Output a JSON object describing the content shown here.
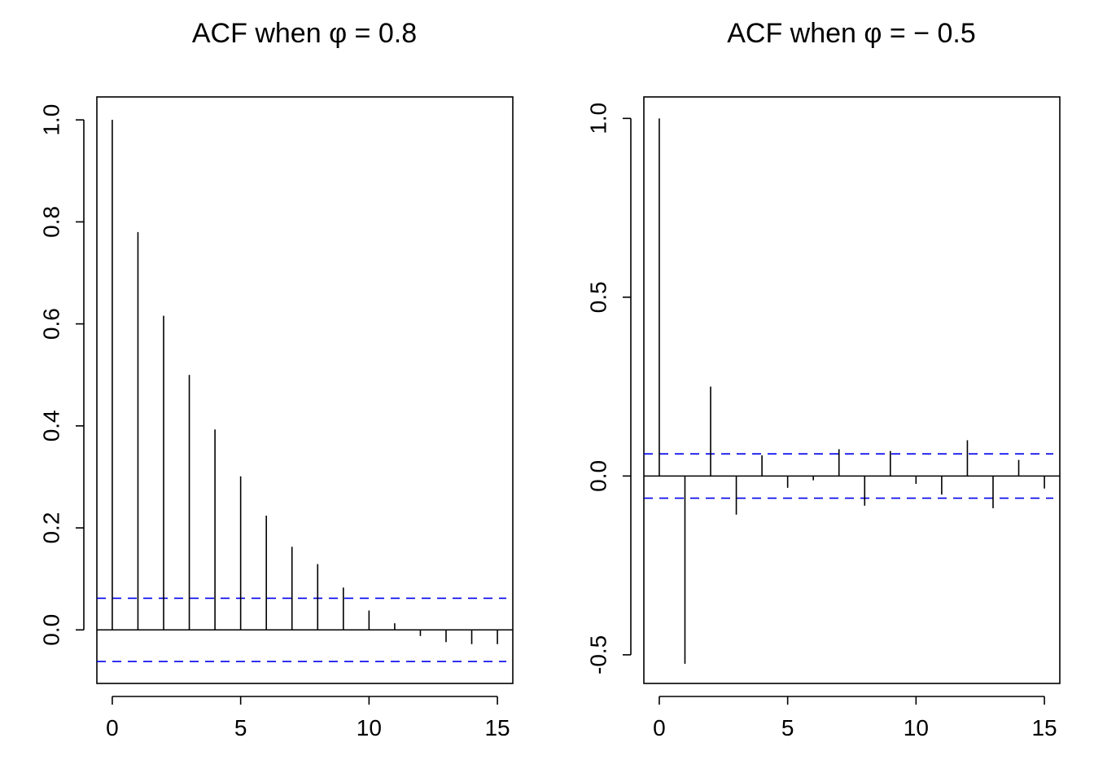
{
  "chart_data": [
    {
      "type": "bar",
      "title_prefix": "ACF when ",
      "title_symbol": "φ",
      "title_suffix": " = 0.8",
      "x": [
        0,
        1,
        2,
        3,
        4,
        5,
        6,
        7,
        8,
        9,
        10,
        11,
        12,
        13,
        14,
        15
      ],
      "values": [
        1.0,
        0.78,
        0.616,
        0.5,
        0.393,
        0.301,
        0.224,
        0.163,
        0.129,
        0.083,
        0.038,
        0.013,
        -0.012,
        -0.024,
        -0.028,
        -0.028
      ],
      "ci": 0.062,
      "xlim": [
        -0.6,
        15.6
      ],
      "ylim": [
        -0.105,
        1.045
      ],
      "xticks": [
        0,
        5,
        10,
        15
      ],
      "xtick_labels": [
        "0",
        "5",
        "10",
        "15"
      ],
      "yticks": [
        0.0,
        0.2,
        0.4,
        0.6,
        0.8,
        1.0
      ],
      "ytick_labels": [
        "0.0",
        "0.2",
        "0.4",
        "0.6",
        "0.8",
        "1.0"
      ],
      "xlabel": "",
      "ylabel": ""
    },
    {
      "type": "bar",
      "title_prefix": "ACF when ",
      "title_symbol": "φ",
      "title_suffix": " = − 0.5",
      "x": [
        0,
        1,
        2,
        3,
        4,
        5,
        6,
        7,
        8,
        9,
        10,
        11,
        12,
        13,
        14,
        15
      ],
      "values": [
        1.0,
        -0.525,
        0.25,
        -0.108,
        0.058,
        -0.033,
        -0.012,
        0.075,
        -0.083,
        0.07,
        -0.022,
        -0.052,
        0.1,
        -0.09,
        0.045,
        -0.035
      ],
      "ci": 0.062,
      "xlim": [
        -0.6,
        15.6
      ],
      "ylim": [
        -0.58,
        1.06
      ],
      "xticks": [
        0,
        5,
        10,
        15
      ],
      "xtick_labels": [
        "0",
        "5",
        "10",
        "15"
      ],
      "yticks": [
        -0.5,
        0.0,
        0.5,
        1.0
      ],
      "ytick_labels": [
        "-0.5",
        "0.0",
        "0.5",
        "1.0"
      ],
      "xlabel": "",
      "ylabel": ""
    }
  ]
}
